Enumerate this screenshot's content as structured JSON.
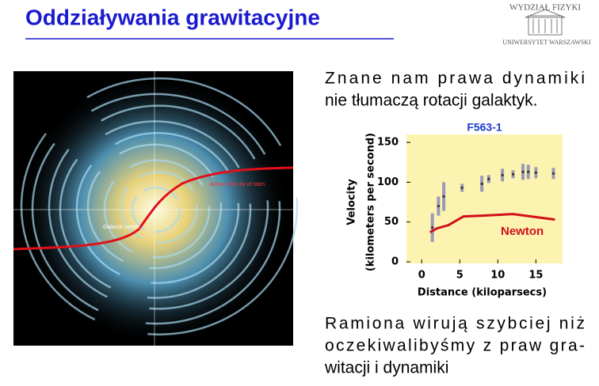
{
  "title": "Oddziaływania grawitacyjne",
  "logo": {
    "top": "WYDZIAŁ FIZYKI",
    "bottom": "UNIWERSYTET WARSZAWSKI"
  },
  "image": {
    "center_label": "Galactic center",
    "curve_label": "Actual velocity of stars"
  },
  "text_1": [
    "Znane nam prawa dynamiki",
    "nie tłumaczą rotacji galaktyk."
  ],
  "text_2": [
    "Ramiona wirują szybciej niż",
    "oczekiwalibyśmy z praw gra-",
    "witacji i dynamiki"
  ],
  "chart_data": {
    "type": "line",
    "title": "F563-1",
    "xlabel": "Distance (kiloparsecs)",
    "ylabel": [
      "Velocity",
      "(kilometers per second)"
    ],
    "xlim": [
      -2,
      18.5
    ],
    "ylim": [
      -2,
      160
    ],
    "xticks": [
      0,
      5,
      10,
      15
    ],
    "yticks": [
      0,
      50,
      100,
      150
    ],
    "grid": false,
    "background": "#fdf3b0",
    "series": [
      {
        "type": "errorbar",
        "color": "#9a9ab8",
        "x": [
          1.4,
          2.2,
          2.9,
          5.3,
          7.9,
          8.8,
          10.6,
          12,
          13.3,
          14,
          15,
          17.3
        ],
        "values": [
          43,
          70,
          82,
          93,
          98,
          104,
          109,
          110,
          113,
          113,
          112,
          111
        ],
        "errors": [
          18,
          12,
          18,
          5,
          10,
          5,
          8,
          5,
          10,
          9,
          7,
          7
        ]
      },
      {
        "type": "line",
        "name": "Newton",
        "color": "#d0101a",
        "x": [
          1.1,
          2,
          3.5,
          5.5,
          8,
          12,
          17.5
        ],
        "values": [
          37,
          42,
          46,
          57,
          58,
          60,
          53
        ]
      }
    ]
  }
}
